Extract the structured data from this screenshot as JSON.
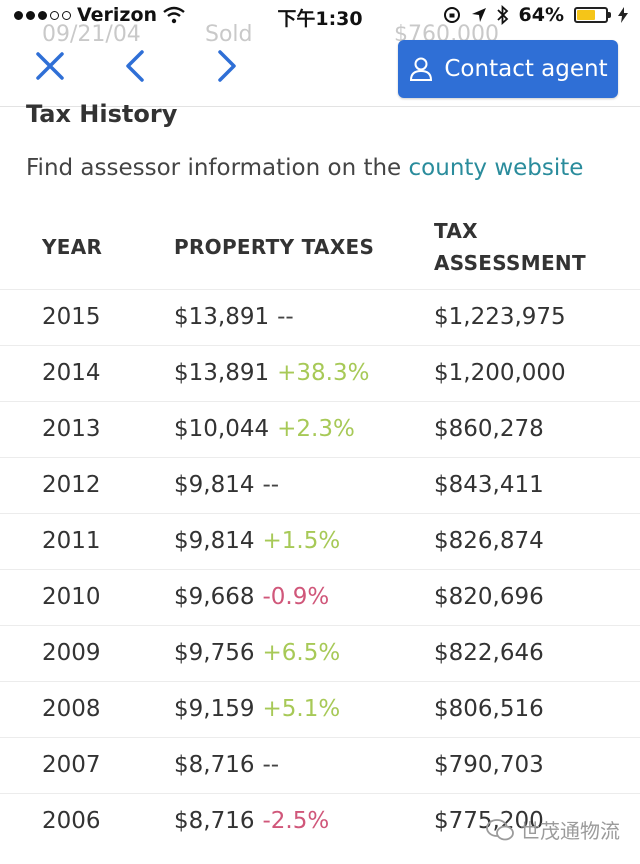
{
  "status_bar": {
    "carrier": "Verizon",
    "time": "下午1:30",
    "battery": "64%",
    "battery_level": 0.64
  },
  "ghost": {
    "date": "09/21/04",
    "event": "Sold",
    "price": "$760,000"
  },
  "header": {
    "close_icon": "close-icon",
    "prev_icon": "chevron-left-icon",
    "next_icon": "chevron-right-icon",
    "contact_label": "Contact agent",
    "accent": "#2f6fd6"
  },
  "tax": {
    "title": "Tax History",
    "assessor_prefix": "Find assessor information on the ",
    "assessor_link": "county website",
    "columns": {
      "year": "YEAR",
      "taxes": "PROPERTY TAXES",
      "assessment_1": "TAX",
      "assessment_2": "ASSESSMENT"
    },
    "rows": [
      {
        "year": "2015",
        "tax": "$13,891",
        "change": "--",
        "trend": "neu",
        "assessment": "$1,223,975"
      },
      {
        "year": "2014",
        "tax": "$13,891",
        "change": "+38.3%",
        "trend": "pos",
        "assessment": "$1,200,000"
      },
      {
        "year": "2013",
        "tax": "$10,044",
        "change": "+2.3%",
        "trend": "pos",
        "assessment": "$860,278"
      },
      {
        "year": "2012",
        "tax": "$9,814",
        "change": "--",
        "trend": "neu",
        "assessment": "$843,411"
      },
      {
        "year": "2011",
        "tax": "$9,814",
        "change": "+1.5%",
        "trend": "pos",
        "assessment": "$826,874"
      },
      {
        "year": "2010",
        "tax": "$9,668",
        "change": "-0.9%",
        "trend": "neg",
        "assessment": "$820,696"
      },
      {
        "year": "2009",
        "tax": "$9,756",
        "change": "+6.5%",
        "trend": "pos",
        "assessment": "$822,646"
      },
      {
        "year": "2008",
        "tax": "$9,159",
        "change": "+5.1%",
        "trend": "pos",
        "assessment": "$806,516"
      },
      {
        "year": "2007",
        "tax": "$8,716",
        "change": "--",
        "trend": "neu",
        "assessment": "$790,703"
      },
      {
        "year": "2006",
        "tax": "$8,716",
        "change": "-2.5%",
        "trend": "neg",
        "assessment": "$775,200"
      }
    ]
  },
  "watermark": "世茂通物流"
}
